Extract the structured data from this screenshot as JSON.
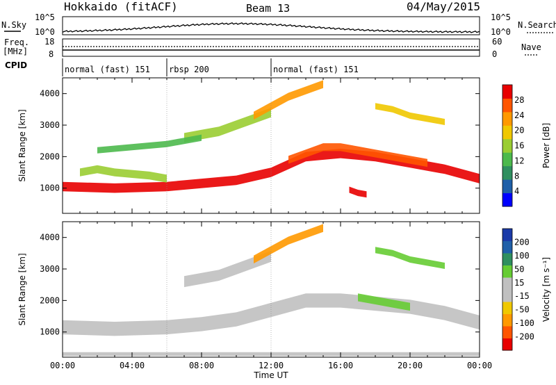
{
  "header": {
    "title": "Hokkaido (fitACF)",
    "beam": "Beam 13",
    "date": "04/May/2015"
  },
  "top_panels": {
    "nsky_label": "N.Sky",
    "nsky_ticks": [
      "10^5",
      "10^0"
    ],
    "nsearch_ticks": [
      "10^5",
      "10^0"
    ],
    "nsearch_label": "N.Search",
    "freq_label_1": "Freq.",
    "freq_label_2": "[MHz]",
    "freq_ticks": [
      "18",
      "8"
    ],
    "nave_ticks": [
      "60",
      "0"
    ],
    "nave_label": "Nave",
    "cpid_label": "CPID",
    "cpid_segments": [
      {
        "label": "normal (fast) 151",
        "start_hour": 0,
        "end_hour": 6
      },
      {
        "label": "rbsp 200",
        "start_hour": 6,
        "end_hour": 12
      },
      {
        "label": "normal (fast) 151",
        "start_hour": 12,
        "end_hour": 24
      }
    ]
  },
  "chart_data": [
    {
      "type": "heatmap",
      "title": "",
      "ylabel": "Slant Range [km]",
      "xlabel": "",
      "yticks": [
        "1000",
        "2000",
        "3000",
        "4000"
      ],
      "ylim": [
        200,
        4500
      ],
      "xlim": [
        0,
        24
      ],
      "colorbar_label": "Power [dB]",
      "colorbar_ticks": [
        "28",
        "24",
        "20",
        "16",
        "12",
        "8",
        "4"
      ],
      "colors": [
        "#0000ff",
        "#1f5fa8",
        "#2f8f5f",
        "#4cb94c",
        "#9acd32",
        "#f0c800",
        "#ff9900",
        "#ff5500",
        "#e80000"
      ],
      "bands": [
        {
          "x": [
            0,
            3,
            6,
            8,
            10,
            12,
            14,
            16,
            18,
            20,
            22,
            24
          ],
          "y": [
            1050,
            1000,
            1050,
            1150,
            1250,
            1500,
            2000,
            2100,
            2000,
            1800,
            1600,
            1300
          ],
          "width": 300,
          "value": 26
        },
        {
          "x": [
            1,
            2,
            3,
            4,
            5,
            6
          ],
          "y": [
            1500,
            1600,
            1500,
            1450,
            1400,
            1300
          ],
          "width": 250,
          "value": 14
        },
        {
          "x": [
            7,
            8,
            9,
            10,
            11,
            12
          ],
          "y": [
            2600,
            2700,
            2800,
            3000,
            3200,
            3400
          ],
          "width": 300,
          "value": 16
        },
        {
          "x": [
            11,
            12,
            13,
            14,
            15
          ],
          "y": [
            3300,
            3600,
            3900,
            4100,
            4300
          ],
          "width": 250,
          "value": 22
        },
        {
          "x": [
            13,
            14,
            15,
            16,
            17,
            18,
            19,
            20,
            21
          ],
          "y": [
            1900,
            2100,
            2300,
            2300,
            2200,
            2100,
            2000,
            1900,
            1800
          ],
          "width": 250,
          "value": 24
        },
        {
          "x": [
            18,
            19,
            20,
            21,
            22
          ],
          "y": [
            3600,
            3500,
            3300,
            3200,
            3100
          ],
          "width": 200,
          "value": 18
        },
        {
          "x": [
            2,
            4,
            6,
            7,
            8
          ],
          "y": [
            2200,
            2300,
            2400,
            2500,
            2600
          ],
          "width": 200,
          "value": 12
        },
        {
          "x": [
            16.5,
            17,
            17.5
          ],
          "y": [
            950,
            850,
            800
          ],
          "width": 200,
          "value": 26
        }
      ]
    },
    {
      "type": "heatmap",
      "title": "",
      "ylabel": "Slant Range [km]",
      "xlabel": "Time UT",
      "yticks": [
        "1000",
        "2000",
        "3000",
        "4000"
      ],
      "ylim": [
        200,
        4500
      ],
      "xlim": [
        0,
        24
      ],
      "xticks": [
        "00:00",
        "04:00",
        "08:00",
        "12:00",
        "16:00",
        "20:00",
        "00:00"
      ],
      "colorbar_label": "Velocity [m s⁻¹]",
      "colorbar_ticks": [
        "200",
        "100",
        "50",
        "15",
        "-15",
        "-50",
        "-100",
        "-200"
      ],
      "colors": [
        "#e80000",
        "#ff5500",
        "#ff9900",
        "#f0c800",
        "#c0c0c0",
        "#c0c0c0",
        "#66cc33",
        "#2f8f5f",
        "#1f5fa8",
        "#1a3aa8"
      ],
      "bands": [
        {
          "x": [
            0,
            3,
            6,
            8,
            10,
            12,
            14,
            16,
            18,
            20,
            22,
            24
          ],
          "y": [
            1150,
            1100,
            1150,
            1250,
            1400,
            1700,
            2000,
            2000,
            1900,
            1800,
            1600,
            1300
          ],
          "width": 450,
          "value": 0
        },
        {
          "x": [
            7,
            8,
            9,
            10,
            11,
            12
          ],
          "y": [
            2600,
            2700,
            2800,
            3000,
            3200,
            3400
          ],
          "width": 350,
          "value": 0
        },
        {
          "x": [
            11,
            12,
            13,
            14,
            15
          ],
          "y": [
            3300,
            3600,
            3900,
            4100,
            4300
          ],
          "width": 250,
          "value": -30
        },
        {
          "x": [
            17,
            18,
            19,
            20
          ],
          "y": [
            2100,
            2000,
            1900,
            1800
          ],
          "width": 250,
          "value": 40
        },
        {
          "x": [
            18,
            19,
            20,
            21,
            22
          ],
          "y": [
            3600,
            3500,
            3300,
            3200,
            3100
          ],
          "width": 200,
          "value": 40
        },
        {
          "x": [
            0,
            6,
            12,
            18,
            24
          ],
          "y": [
            300,
            300,
            300,
            300,
            300
          ],
          "width": 120,
          "value": 0
        }
      ]
    }
  ]
}
